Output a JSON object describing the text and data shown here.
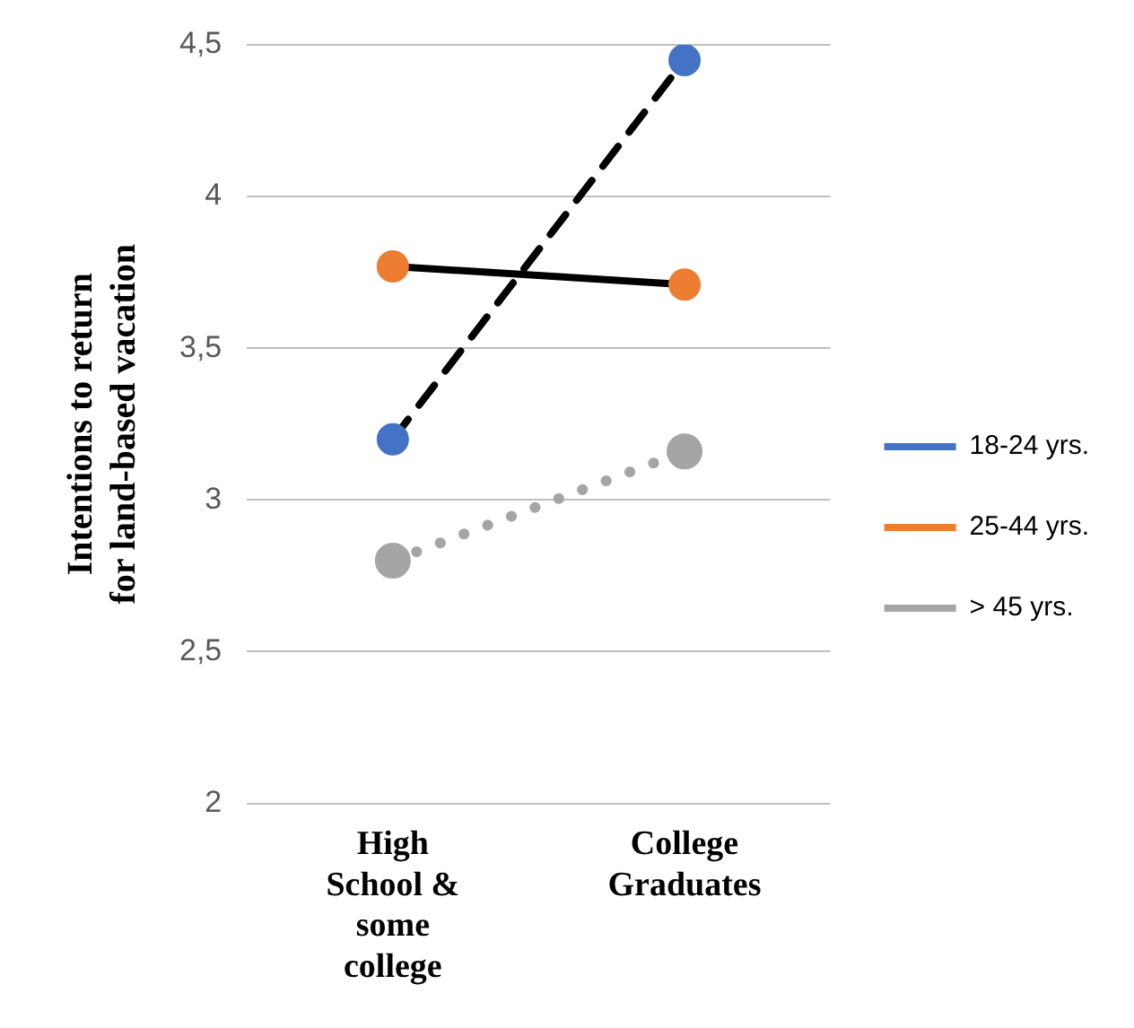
{
  "chart_data": {
    "type": "line",
    "ylabel": "Intentions to return for land-based vacation",
    "categories": [
      "High School & some college",
      "College Graduates"
    ],
    "series": [
      {
        "name": "18-24 yrs.",
        "color": "#4472c4",
        "values": [
          3.2,
          4.45
        ],
        "line_style": "dashed"
      },
      {
        "name": "25-44 yrs.",
        "color": "#ed7d31",
        "values": [
          3.77,
          3.71
        ],
        "line_style": "solid"
      },
      {
        "name": "> 45 yrs.",
        "color": "#a5a5a5",
        "values": [
          2.8,
          3.16
        ],
        "line_style": "dotted"
      }
    ],
    "ylim": [
      2,
      4.5
    ],
    "yticks": [
      2,
      {
        "value": 2.5,
        "label": "2,5"
      },
      3,
      {
        "value": 3.5,
        "label": "3,5"
      },
      4,
      {
        "value": 4.5,
        "label": "4,5"
      }
    ],
    "grid": "y",
    "legend": "right",
    "marker": "circle"
  }
}
